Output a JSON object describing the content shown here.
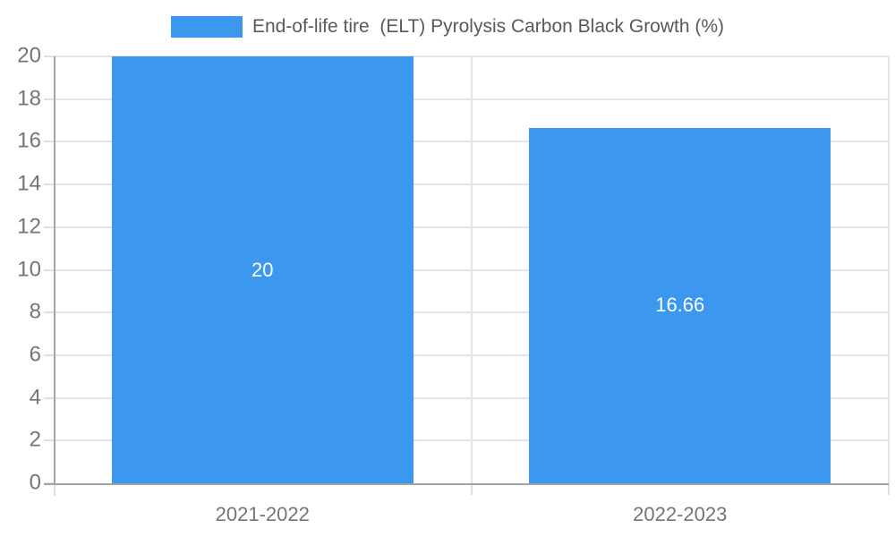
{
  "chart_data": {
    "type": "bar",
    "legend": "End-of-life tire  (ELT) Pyrolysis Carbon Black Growth (%)",
    "legend_position": "top-center",
    "categories": [
      "2021-2022",
      "2022-2023"
    ],
    "values": [
      20,
      16.66
    ],
    "bar_labels": [
      "20",
      "16.66"
    ],
    "xlabel": "",
    "ylabel": "",
    "ylim": [
      0,
      20
    ],
    "ytick_step": 2,
    "grid": true,
    "colors": {
      "bar": "#3b98ee",
      "bar_label_text": "#ffffff",
      "gridline": "#e4e4e4",
      "axis_line": "#a3a3a3",
      "tick": "#e0e0e0",
      "axis_label_text": "#757575",
      "legend_text": "#595959",
      "background": "#ffffff"
    }
  }
}
